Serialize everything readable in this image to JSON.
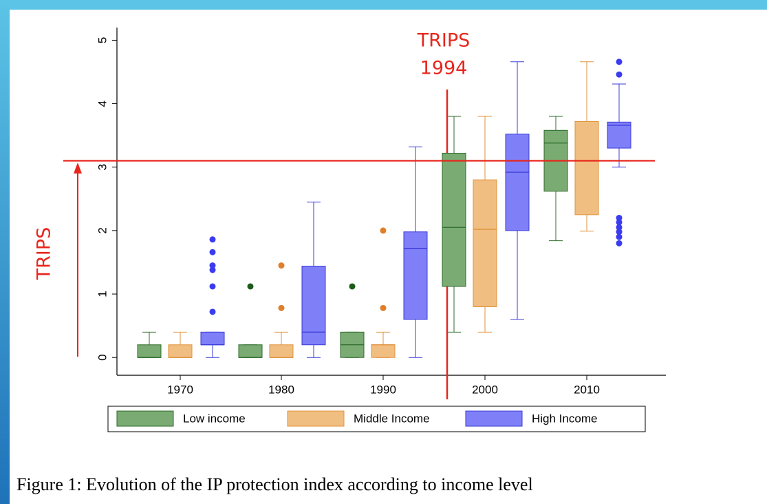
{
  "chart_data": {
    "type": "box",
    "categories": [
      "1970",
      "1980",
      "1990",
      "2000",
      "2010"
    ],
    "series": [
      {
        "name": "Low income",
        "color": "#7aab73",
        "edge": "#2e6b2a",
        "flier_color": "#1a5c1a",
        "boxes": [
          {
            "whislo": 0,
            "q1": 0,
            "med": 0,
            "q3": 0.2,
            "whishi": 0.4,
            "fliers": []
          },
          {
            "whislo": 0,
            "q1": 0,
            "med": 0,
            "q3": 0.2,
            "whishi": 0.2,
            "fliers": [
              1.12
            ]
          },
          {
            "whislo": 0,
            "q1": 0,
            "med": 0.2,
            "q3": 0.4,
            "whishi": 0.4,
            "fliers": [
              1.12
            ]
          },
          {
            "whislo": 0.4,
            "q1": 1.12,
            "med": 2.05,
            "q3": 3.22,
            "whishi": 3.8,
            "fliers": []
          },
          {
            "whislo": 1.84,
            "q1": 2.62,
            "med": 3.38,
            "q3": 3.58,
            "whishi": 3.8,
            "fliers": []
          }
        ]
      },
      {
        "name": "Middle Income",
        "color": "#f1be82",
        "edge": "#e0913a",
        "flier_color": "#e07e2a",
        "boxes": [
          {
            "whislo": 0,
            "q1": 0,
            "med": 0,
            "q3": 0.2,
            "whishi": 0.4,
            "fliers": []
          },
          {
            "whislo": 0,
            "q1": 0,
            "med": 0,
            "q3": 0.2,
            "whishi": 0.4,
            "fliers": [
              0.78,
              1.45
            ]
          },
          {
            "whislo": 0,
            "q1": 0,
            "med": 0.2,
            "q3": 0.2,
            "whishi": 0.4,
            "fliers": [
              0.78,
              2.0
            ]
          },
          {
            "whislo": 0.4,
            "q1": 0.8,
            "med": 2.02,
            "q3": 2.8,
            "whishi": 3.8,
            "fliers": []
          },
          {
            "whislo": 1.99,
            "q1": 2.25,
            "med": 3.1,
            "q3": 3.72,
            "whishi": 4.66,
            "fliers": []
          }
        ]
      },
      {
        "name": "High Income",
        "color": "#7f7ff8",
        "edge": "#3b3bd9",
        "flier_color": "#3b3bf0",
        "boxes": [
          {
            "whislo": 0,
            "q1": 0.2,
            "med": 0.2,
            "q3": 0.4,
            "whishi": 0.4,
            "fliers": [
              0.72,
              1.12,
              1.38,
              1.45,
              1.66,
              1.86
            ]
          },
          {
            "whislo": 0,
            "q1": 0.2,
            "med": 0.4,
            "q3": 1.44,
            "whishi": 2.45,
            "fliers": []
          },
          {
            "whislo": 0,
            "q1": 0.6,
            "med": 1.72,
            "q3": 1.98,
            "whishi": 3.32,
            "fliers": []
          },
          {
            "whislo": 0.6,
            "q1": 2.0,
            "med": 2.92,
            "q3": 3.52,
            "whishi": 4.66,
            "fliers": []
          },
          {
            "whislo": 3.0,
            "q1": 3.3,
            "med": 3.66,
            "q3": 3.71,
            "whishi": 4.31,
            "fliers": [
              4.46,
              4.66,
              2.2,
              2.13,
              2.05,
              1.98,
              1.9,
              1.8
            ]
          }
        ]
      }
    ],
    "ylim": [
      -0.28,
      5.2
    ],
    "yticks": [
      0,
      1,
      2,
      3,
      4,
      5
    ],
    "reference_line": {
      "value": 3.1,
      "color": "#e8261c"
    },
    "annotations": {
      "event": [
        "TRIPS",
        "1994"
      ],
      "arrow_label": "TRIPS"
    },
    "caption": "Figure 1: Evolution of the IP protection index according to income level"
  }
}
